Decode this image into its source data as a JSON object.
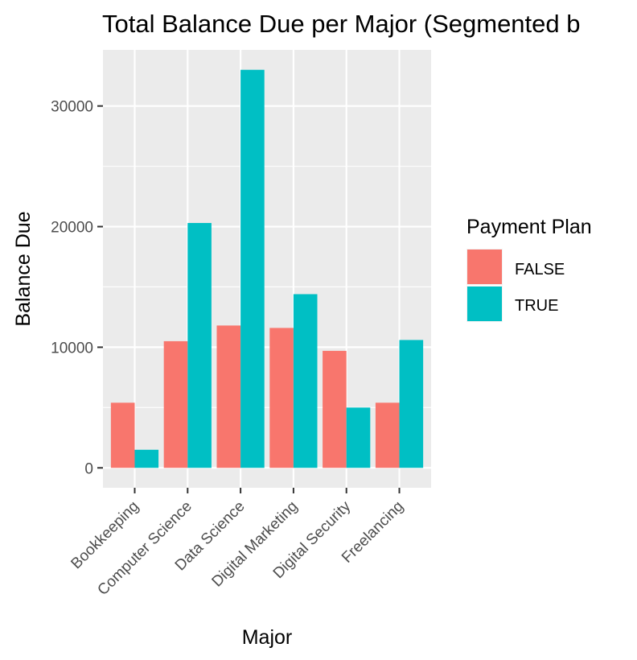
{
  "chart_data": {
    "type": "bar",
    "title": "Total Balance Due per Major (Segmented b",
    "xlabel": "Major",
    "ylabel": "Balance Due",
    "categories": [
      "Bookkeeping",
      "Computer Science",
      "Data Science",
      "Digital Marketing",
      "Digital Security",
      "Freelancing"
    ],
    "series": [
      {
        "name": "FALSE",
        "color": "#F8766D",
        "values": [
          5400,
          10500,
          11800,
          11600,
          9700,
          5400
        ]
      },
      {
        "name": "TRUE",
        "color": "#00BFC4",
        "values": [
          1500,
          20300,
          33000,
          14400,
          5000,
          10600
        ]
      }
    ],
    "ylim": [
      -1650,
      34650
    ],
    "yticks": [
      0,
      10000,
      20000,
      30000
    ],
    "ytick_labels": [
      "0",
      "10000",
      "20000",
      "30000"
    ],
    "grid": true,
    "legend": {
      "title": "Payment Plan",
      "position": "right"
    }
  }
}
